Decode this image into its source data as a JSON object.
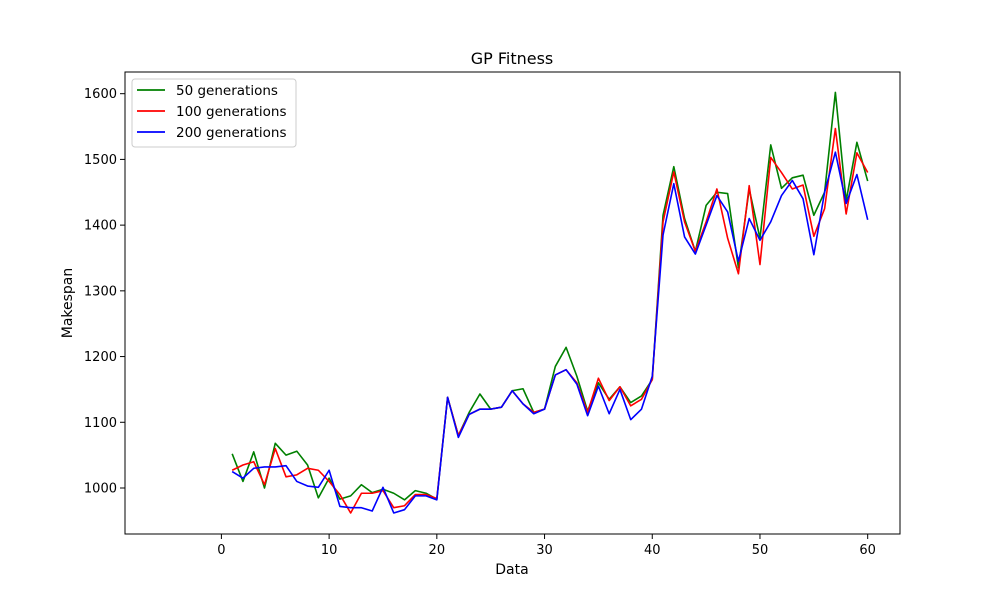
{
  "chart_data": {
    "type": "line",
    "title": "GP Fitness",
    "xlabel": "Data",
    "ylabel": "Makespan",
    "xlim": [
      -8.95,
      63.0
    ],
    "ylim": [
      930,
      1633
    ],
    "xticks": [
      0,
      10,
      20,
      30,
      40,
      50,
      60
    ],
    "yticks": [
      1000,
      1100,
      1200,
      1300,
      1400,
      1500,
      1600
    ],
    "grid": false,
    "legend": "top-left",
    "x": [
      1,
      2,
      3,
      4,
      5,
      6,
      7,
      8,
      9,
      10,
      11,
      12,
      13,
      14,
      15,
      16,
      17,
      18,
      19,
      20,
      21,
      22,
      23,
      24,
      25,
      26,
      27,
      28,
      29,
      30,
      31,
      32,
      33,
      34,
      35,
      36,
      37,
      38,
      39,
      40,
      41,
      42,
      43,
      44,
      45,
      46,
      47,
      48,
      49,
      50,
      51,
      52,
      53,
      54,
      55,
      56,
      57,
      58,
      59,
      60
    ],
    "series": [
      {
        "name": "50 generations",
        "color": "#008000",
        "values": [
          1052,
          1010,
          1055,
          1000,
          1068,
          1050,
          1056,
          1035,
          985,
          1015,
          983,
          988,
          1005,
          993,
          998,
          992,
          982,
          996,
          992,
          983,
          1138,
          1080,
          1115,
          1143,
          1120,
          1123,
          1148,
          1151,
          1115,
          1120,
          1185,
          1214,
          1170,
          1117,
          1160,
          1135,
          1154,
          1130,
          1140,
          1165,
          1415,
          1489,
          1410,
          1360,
          1430,
          1450,
          1448,
          1335,
          1455,
          1380,
          1522,
          1456,
          1472,
          1476,
          1415,
          1450,
          1602,
          1437,
          1526,
          1467
        ]
      },
      {
        "name": "100 generations",
        "color": "#ff0000",
        "values": [
          1027,
          1035,
          1040,
          1005,
          1060,
          1017,
          1020,
          1030,
          1027,
          1010,
          990,
          962,
          992,
          992,
          996,
          970,
          973,
          990,
          990,
          984,
          1138,
          1080,
          1112,
          1120,
          1120,
          1123,
          1148,
          1128,
          1115,
          1120,
          1172,
          1180,
          1160,
          1115,
          1167,
          1133,
          1154,
          1125,
          1135,
          1165,
          1405,
          1481,
          1405,
          1360,
          1405,
          1455,
          1380,
          1326,
          1460,
          1340,
          1503,
          1480,
          1455,
          1461,
          1383,
          1425,
          1547,
          1417,
          1510,
          1480
        ]
      },
      {
        "name": "200 generations",
        "color": "#0000ff",
        "values": [
          1025,
          1015,
          1030,
          1032,
          1032,
          1034,
          1010,
          1003,
          1001,
          1027,
          972,
          970,
          970,
          965,
          1001,
          962,
          967,
          988,
          988,
          982,
          1138,
          1077,
          1112,
          1120,
          1120,
          1123,
          1148,
          1128,
          1113,
          1120,
          1172,
          1180,
          1158,
          1110,
          1155,
          1113,
          1150,
          1104,
          1120,
          1170,
          1385,
          1463,
          1382,
          1356,
          1400,
          1445,
          1420,
          1345,
          1410,
          1377,
          1405,
          1445,
          1468,
          1440,
          1355,
          1450,
          1511,
          1433,
          1477,
          1408
        ]
      }
    ]
  }
}
